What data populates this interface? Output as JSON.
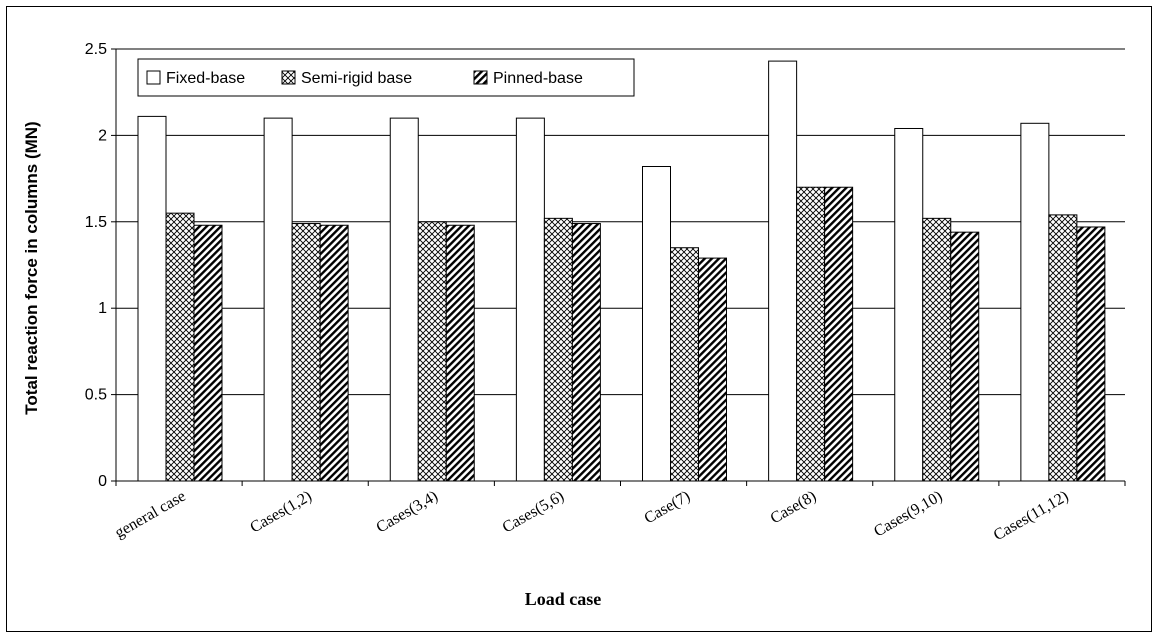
{
  "chart_data": {
    "type": "bar",
    "title": "",
    "xlabel": "Load case",
    "ylabel": "Total reaction force in columns (MN)",
    "ylim": [
      0,
      2.5
    ],
    "yticks": [
      0,
      0.5,
      1,
      1.5,
      2,
      2.5
    ],
    "yticks_labels": [
      "0",
      "0.5",
      "1",
      "1.5",
      "2",
      "2.5"
    ],
    "grid": "horizontal",
    "legend_position": "top-left",
    "categories": [
      "general case",
      "Cases(1,2)",
      "Cases(3,4)",
      "Cases(5,6)",
      "Case(7)",
      "Case(8)",
      "Cases(9,10)",
      "Cases(11,12)"
    ],
    "series": [
      {
        "name": "Fixed-base",
        "pattern": "solid-white",
        "values": [
          2.11,
          2.1,
          2.1,
          2.1,
          1.82,
          2.43,
          2.04,
          2.07
        ]
      },
      {
        "name": "Semi-rigid base",
        "pattern": "crosshatch",
        "values": [
          1.55,
          1.49,
          1.5,
          1.52,
          1.35,
          1.7,
          1.52,
          1.54
        ]
      },
      {
        "name": "Pinned-base",
        "pattern": "diagonal",
        "values": [
          1.48,
          1.48,
          1.48,
          1.49,
          1.29,
          1.7,
          1.44,
          1.47
        ]
      }
    ],
    "colors": {
      "fill": "#ffffff",
      "stroke": "#000000",
      "grid": "#000000"
    }
  }
}
